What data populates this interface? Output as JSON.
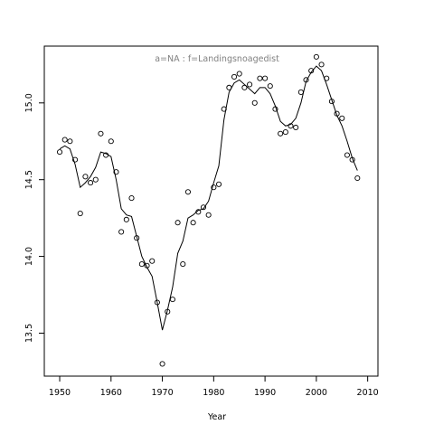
{
  "chart_data": {
    "type": "scatter",
    "title": "",
    "annotation": "a=NA  :  f=Landingsnoagedist",
    "xlabel": "Year",
    "ylabel": "",
    "xlim": [
      1947,
      2012
    ],
    "ylim": [
      13.22,
      15.37
    ],
    "xticks": [
      1950,
      1960,
      1970,
      1980,
      1990,
      2000,
      2010
    ],
    "yticks": [
      13.5,
      14.0,
      14.5,
      15.0
    ],
    "xtick_labels": [
      "1950",
      "1960",
      "1970",
      "1980",
      "1990",
      "2000",
      "2010"
    ],
    "ytick_labels": [
      "13.5",
      "14.0",
      "14.5",
      "15.0"
    ],
    "grid": false,
    "series": [
      {
        "style": "points",
        "x": [
          1950,
          1951,
          1952,
          1953,
          1954,
          1955,
          1956,
          1957,
          1958,
          1959,
          1960,
          1961,
          1962,
          1963,
          1964,
          1965,
          1966,
          1967,
          1968,
          1969,
          1970,
          1971,
          1972,
          1973,
          1974,
          1975,
          1976,
          1977,
          1978,
          1979,
          1980,
          1981,
          1982,
          1983,
          1984,
          1985,
          1986,
          1987,
          1988,
          1989,
          1990,
          1991,
          1992,
          1993,
          1994,
          1995,
          1996,
          1997,
          1998,
          1999,
          2000,
          2001,
          2002,
          2003,
          2004,
          2005,
          2006,
          2007,
          2008
        ],
        "y": [
          14.68,
          14.76,
          14.75,
          14.63,
          14.28,
          14.52,
          14.48,
          14.5,
          14.8,
          14.66,
          14.75,
          14.55,
          14.16,
          14.24,
          14.38,
          14.12,
          13.95,
          13.94,
          13.97,
          13.7,
          13.3,
          13.64,
          13.72,
          14.22,
          13.95,
          14.42,
          14.22,
          14.29,
          14.32,
          14.27,
          14.45,
          14.47,
          14.96,
          15.1,
          15.17,
          15.19,
          15.1,
          15.12,
          15.0,
          15.16,
          15.16,
          15.11,
          14.96,
          14.8,
          14.81,
          14.85,
          14.84,
          15.07,
          15.15,
          15.21,
          15.3,
          15.25,
          15.16,
          15.01,
          14.93,
          14.9,
          14.66,
          14.63,
          14.51
        ]
      },
      {
        "style": "line",
        "x": [
          1950,
          1951,
          1952,
          1953,
          1954,
          1955,
          1956,
          1957,
          1958,
          1959,
          1960,
          1961,
          1962,
          1963,
          1964,
          1965,
          1966,
          1967,
          1968,
          1969,
          1970,
          1971,
          1972,
          1973,
          1974,
          1975,
          1976,
          1977,
          1978,
          1979,
          1980,
          1981,
          1982,
          1983,
          1984,
          1985,
          1986,
          1987,
          1988,
          1989,
          1990,
          1991,
          1992,
          1993,
          1994,
          1995,
          1996,
          1997,
          1998,
          1999,
          2000,
          2001,
          2002,
          2003,
          2004,
          2005,
          2006,
          2007,
          2008
        ],
        "y": [
          14.7,
          14.72,
          14.7,
          14.6,
          14.45,
          14.48,
          14.52,
          14.58,
          14.68,
          14.67,
          14.65,
          14.5,
          14.31,
          14.27,
          14.26,
          14.13,
          14.0,
          13.93,
          13.87,
          13.7,
          13.52,
          13.65,
          13.8,
          14.02,
          14.1,
          14.25,
          14.27,
          14.3,
          14.31,
          14.36,
          14.48,
          14.59,
          14.89,
          15.07,
          15.13,
          15.15,
          15.12,
          15.09,
          15.06,
          15.1,
          15.1,
          15.06,
          14.98,
          14.88,
          14.85,
          14.86,
          14.9,
          15.0,
          15.14,
          15.2,
          15.24,
          15.21,
          15.12,
          15.02,
          14.92,
          14.85,
          14.75,
          14.64,
          14.56
        ]
      }
    ]
  }
}
